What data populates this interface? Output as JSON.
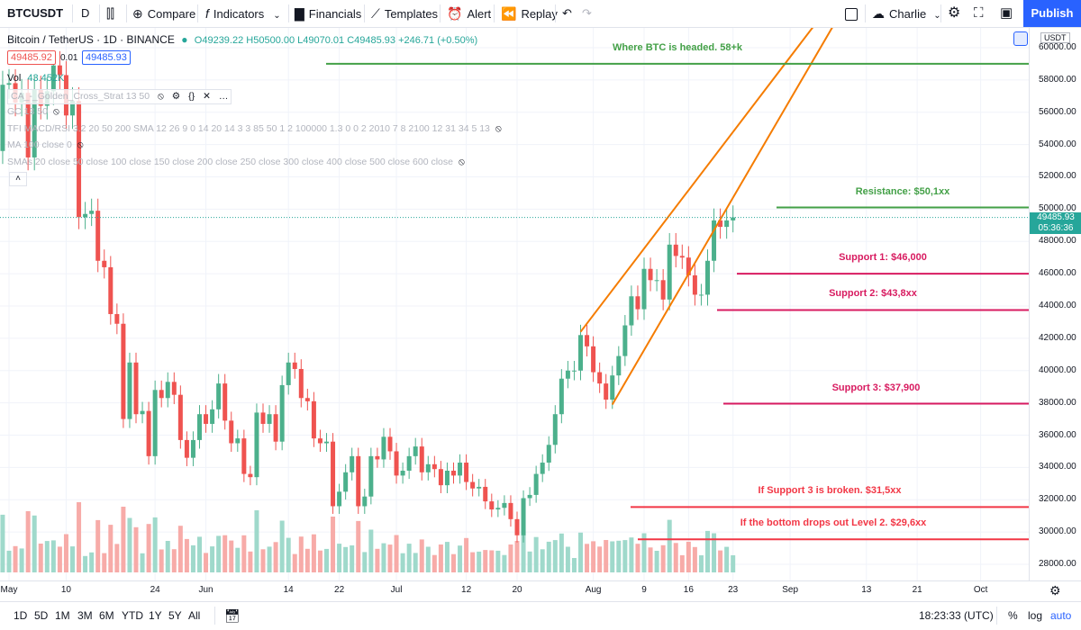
{
  "toolbar": {
    "symbol": "BTCUSDT",
    "interval": "D",
    "compare": "Compare",
    "indicators": "Indicators",
    "financials": "Financials",
    "templates": "Templates",
    "alert": "Alert",
    "replay": "Replay",
    "user": "Charlie",
    "publish": "Publish"
  },
  "legend": {
    "title": "Bitcoin / TetherUS · 1D · BINANCE",
    "ohlc": "O49239.22 H50500.00 L49070.01 C49485.93 +246.71 (+0.50%)",
    "bid": "49485.92",
    "spread": "0.01",
    "ask": "49485.93",
    "vol_label": "Vol",
    "vol_value": "43.452K",
    "indicators": [
      "CA_-_Golden_Cross_Strat 13 50",
      "GC 13 50",
      "TFI MACD/RSI 3.2 20 50 200 SMA 12 26 9 0 14 20 14 3 3 85 50 1 2 100000 1.3 0 0 2 2010 7 8 2100 12 31 34 5 13",
      "MA 100 close 0",
      "SMAs 20 close 50 close 100 close 150 close 200 close 250 close 300 close 400 close 500 close 600 close"
    ]
  },
  "currency": "USDT",
  "last_price": "49485.93",
  "countdown": "05:36:36",
  "colors": {
    "up": "#4cb08c",
    "down": "#ef5350",
    "vol_up": "#9fd9cb",
    "vol_down": "#f7aba8",
    "green_line": "#43a047",
    "pink_line": "#d81b60",
    "red_line": "#f23645",
    "orange": "#f57c00"
  },
  "annotations": [
    {
      "text": "Where BTC is headed. 58+k",
      "price": 59000,
      "color": "green_line"
    },
    {
      "text": "Resistance:  $50,1xx",
      "price": 50100,
      "color": "green_line"
    },
    {
      "text": "Support 1:   $46,000",
      "price": 46000,
      "color": "pink_line"
    },
    {
      "text": "Support 2:  $43,8xx",
      "price": 43750,
      "color": "pink_line"
    },
    {
      "text": "Support 3:  $37,900",
      "price": 37950,
      "color": "pink_line"
    },
    {
      "text": "If Support 3 is broken. $31,5xx",
      "price": 31550,
      "color": "red_line"
    },
    {
      "text": "If the bottom drops out Level 2. $29,6xx",
      "price": 29550,
      "color": "red_line"
    }
  ],
  "bottom": {
    "ranges": [
      "1D",
      "5D",
      "1M",
      "3M",
      "6M",
      "YTD",
      "1Y",
      "5Y",
      "All"
    ],
    "time": "18:23:33 (UTC)",
    "percent": "%",
    "log": "log",
    "auto": "auto"
  },
  "chart_data": {
    "type": "candlestick",
    "symbol": "BTCUSDT",
    "ylim": [
      27000,
      61000
    ],
    "y_ticks": [
      "60000.00",
      "58000.00",
      "56000.00",
      "54000.00",
      "52000.00",
      "50000.00",
      "48000.00",
      "46000.00",
      "44000.00",
      "42000.00",
      "40000.00",
      "38000.00",
      "36000.00",
      "34000.00",
      "32000.00",
      "30000.00",
      "28000.00"
    ],
    "x_ticks": [
      {
        "label": "May",
        "date": "2021-05-01"
      },
      {
        "label": "10",
        "date": "2021-05-10"
      },
      {
        "label": "24",
        "date": "2021-05-24"
      },
      {
        "label": "Jun",
        "date": "2021-06-01"
      },
      {
        "label": "14",
        "date": "2021-06-14"
      },
      {
        "label": "22",
        "date": "2021-06-22"
      },
      {
        "label": "Jul",
        "date": "2021-07-01"
      },
      {
        "label": "12",
        "date": "2021-07-12"
      },
      {
        "label": "20",
        "date": "2021-07-20"
      },
      {
        "label": "Aug",
        "date": "2021-08-01"
      },
      {
        "label": "9",
        "date": "2021-08-09"
      },
      {
        "label": "16",
        "date": "2021-08-16"
      },
      {
        "label": "23",
        "date": "2021-08-23"
      },
      {
        "label": "Sep",
        "date": "2021-09-01"
      },
      {
        "label": "13",
        "date": "2021-09-13"
      },
      {
        "label": "21",
        "date": "2021-09-21"
      },
      {
        "label": "Oct",
        "date": "2021-10-01"
      }
    ],
    "closes": [
      [
        "2021-04-29",
        53600
      ],
      [
        "2021-04-30",
        57700
      ],
      [
        "2021-05-01",
        57800
      ],
      [
        "2021-05-02",
        56600
      ],
      [
        "2021-05-03",
        57200
      ],
      [
        "2021-05-04",
        53200
      ],
      [
        "2021-05-05",
        57400
      ],
      [
        "2021-05-06",
        56400
      ],
      [
        "2021-05-07",
        57300
      ],
      [
        "2021-05-08",
        58900
      ],
      [
        "2021-05-09",
        58300
      ],
      [
        "2021-05-10",
        55800
      ],
      [
        "2021-05-11",
        56700
      ],
      [
        "2021-05-12",
        49500
      ],
      [
        "2021-05-13",
        49700
      ],
      [
        "2021-05-14",
        49900
      ],
      [
        "2021-05-15",
        46800
      ],
      [
        "2021-05-16",
        46400
      ],
      [
        "2021-05-17",
        43500
      ],
      [
        "2021-05-18",
        42900
      ],
      [
        "2021-05-19",
        37000
      ],
      [
        "2021-05-20",
        40500
      ],
      [
        "2021-05-21",
        37300
      ],
      [
        "2021-05-22",
        37500
      ],
      [
        "2021-05-23",
        34700
      ],
      [
        "2021-05-24",
        38800
      ],
      [
        "2021-05-25",
        38300
      ],
      [
        "2021-05-26",
        39300
      ],
      [
        "2021-05-27",
        38500
      ],
      [
        "2021-05-28",
        35700
      ],
      [
        "2021-05-29",
        34600
      ],
      [
        "2021-05-30",
        35700
      ],
      [
        "2021-05-31",
        37300
      ],
      [
        "2021-06-01",
        36700
      ],
      [
        "2021-06-02",
        37600
      ],
      [
        "2021-06-03",
        39200
      ],
      [
        "2021-06-04",
        36900
      ],
      [
        "2021-06-05",
        35500
      ],
      [
        "2021-06-06",
        35800
      ],
      [
        "2021-06-07",
        33600
      ],
      [
        "2021-06-08",
        33400
      ],
      [
        "2021-06-09",
        37400
      ],
      [
        "2021-06-10",
        36700
      ],
      [
        "2021-06-11",
        37300
      ],
      [
        "2021-06-12",
        35600
      ],
      [
        "2021-06-13",
        39100
      ],
      [
        "2021-06-14",
        40500
      ],
      [
        "2021-06-15",
        40100
      ],
      [
        "2021-06-16",
        38300
      ],
      [
        "2021-06-17",
        38100
      ],
      [
        "2021-06-18",
        35800
      ],
      [
        "2021-06-19",
        35500
      ],
      [
        "2021-06-20",
        35600
      ],
      [
        "2021-06-21",
        31600
      ],
      [
        "2021-06-22",
        32500
      ],
      [
        "2021-06-23",
        33700
      ],
      [
        "2021-06-24",
        34700
      ],
      [
        "2021-06-25",
        31600
      ],
      [
        "2021-06-26",
        32200
      ],
      [
        "2021-06-27",
        34700
      ],
      [
        "2021-06-28",
        34500
      ],
      [
        "2021-06-29",
        35900
      ],
      [
        "2021-06-30",
        35000
      ],
      [
        "2021-07-01",
        33500
      ],
      [
        "2021-07-02",
        33800
      ],
      [
        "2021-07-03",
        34700
      ],
      [
        "2021-07-04",
        35300
      ],
      [
        "2021-07-05",
        33700
      ],
      [
        "2021-07-06",
        34200
      ],
      [
        "2021-07-07",
        33900
      ],
      [
        "2021-07-08",
        32900
      ],
      [
        "2021-07-09",
        33800
      ],
      [
        "2021-07-10",
        33500
      ],
      [
        "2021-07-11",
        34300
      ],
      [
        "2021-07-12",
        33100
      ],
      [
        "2021-07-13",
        32700
      ],
      [
        "2021-07-14",
        32800
      ],
      [
        "2021-07-15",
        31900
      ],
      [
        "2021-07-16",
        31400
      ],
      [
        "2021-07-17",
        31500
      ],
      [
        "2021-07-18",
        31800
      ],
      [
        "2021-07-19",
        30800
      ],
      [
        "2021-07-20",
        29800
      ],
      [
        "2021-07-21",
        32100
      ],
      [
        "2021-07-22",
        32300
      ],
      [
        "2021-07-23",
        33600
      ],
      [
        "2021-07-24",
        34300
      ],
      [
        "2021-07-25",
        35400
      ],
      [
        "2021-07-26",
        37300
      ],
      [
        "2021-07-27",
        39500
      ],
      [
        "2021-07-28",
        40000
      ],
      [
        "2021-07-29",
        40000
      ],
      [
        "2021-07-30",
        42200
      ],
      [
        "2021-07-31",
        41500
      ],
      [
        "2021-08-01",
        39900
      ],
      [
        "2021-08-02",
        39200
      ],
      [
        "2021-08-03",
        38200
      ],
      [
        "2021-08-04",
        39700
      ],
      [
        "2021-08-05",
        40900
      ],
      [
        "2021-08-06",
        42800
      ],
      [
        "2021-08-07",
        44600
      ],
      [
        "2021-08-08",
        43800
      ],
      [
        "2021-08-09",
        46300
      ],
      [
        "2021-08-10",
        45600
      ],
      [
        "2021-08-11",
        45600
      ],
      [
        "2021-08-12",
        44400
      ],
      [
        "2021-08-13",
        47800
      ],
      [
        "2021-08-14",
        47100
      ],
      [
        "2021-08-15",
        47000
      ],
      [
        "2021-08-16",
        45900
      ],
      [
        "2021-08-17",
        44700
      ],
      [
        "2021-08-18",
        44700
      ],
      [
        "2021-08-19",
        46800
      ],
      [
        "2021-08-20",
        49300
      ],
      [
        "2021-08-21",
        48900
      ],
      [
        "2021-08-22",
        49300
      ],
      [
        "2021-08-23",
        49486
      ]
    ]
  }
}
